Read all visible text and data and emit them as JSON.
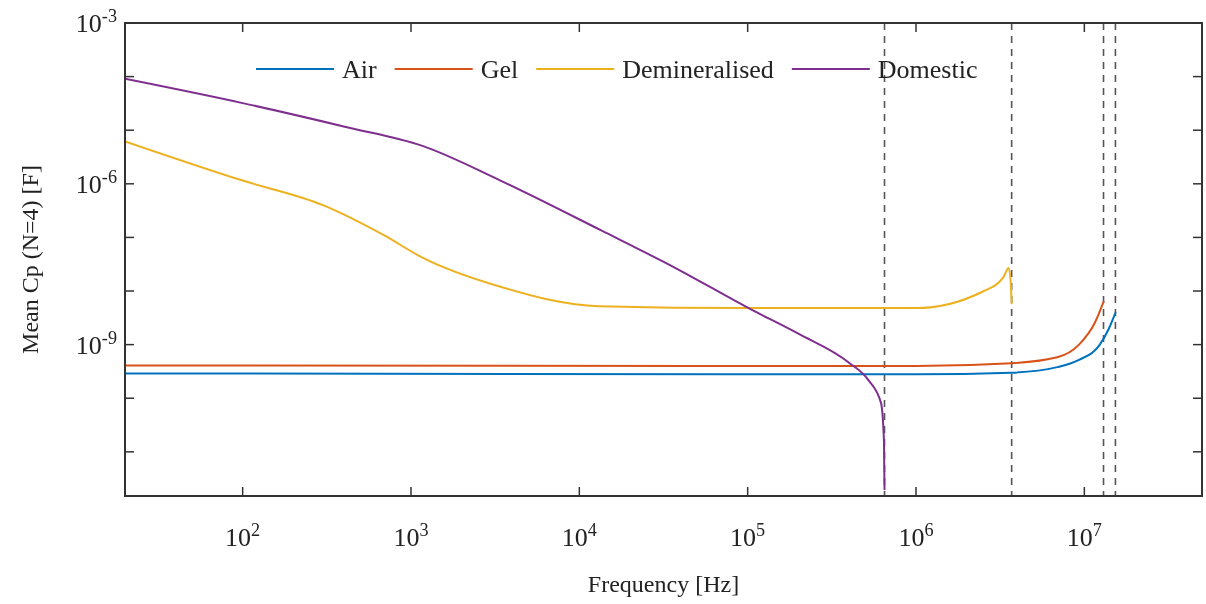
{
  "chart_data": {
    "type": "line",
    "xlabel": "Frequency [Hz]",
    "ylabel": "Mean Cp (N=4) [F]",
    "log": "xy",
    "grid": false,
    "legend": "top",
    "line_style": "solid",
    "marker": "none",
    "xlim": [
      20,
      50000000.0
    ],
    "xticks": [
      {
        "value": 100,
        "label": "10$^{2}$"
      },
      {
        "value": 1000,
        "label": "10$^{3}$"
      },
      {
        "value": 10000,
        "label": "10$^{4}$"
      },
      {
        "value": 100000,
        "label": "10$^{5}$"
      },
      {
        "value": 1000000,
        "label": "10$^{6}$"
      },
      {
        "value": 10000000,
        "label": "10$^{7}$"
      }
    ],
    "ylim": [
      1.5e-12,
      0.001
    ],
    "yticks": [
      {
        "value": 0.001,
        "label": "10$^{-3}$"
      },
      {
        "value": 0.0001,
        "label": null
      },
      {
        "value": 1e-05,
        "label": null
      },
      {
        "value": 1e-06,
        "label": "10$^{-6}$"
      },
      {
        "value": 1e-07,
        "label": null
      },
      {
        "value": 1e-08,
        "label": null
      },
      {
        "value": 1e-09,
        "label": "10$^{-9}$"
      },
      {
        "value": 1e-10,
        "label": null
      },
      {
        "value": 1e-11,
        "label": null
      }
    ],
    "series": [
      {
        "name": "Air",
        "color": "#0072bd",
        "x": [
          20,
          100000.0,
          1000000.0,
          3700000.0,
          6900000.0,
          9300000.0,
          12300000.0,
          14000000.0,
          15300000.0
        ],
        "values": [
          2.9e-10,
          2.8e-10,
          2.8e-10,
          3e-10,
          3.8e-10,
          5.2e-10,
          9.8e-10,
          2e-09,
          3.9e-09
        ]
      },
      {
        "name": "Gel",
        "color": "#d95319",
        "x": [
          20,
          100000.0,
          1000000.0,
          3700000.0,
          6900000.0,
          9300000.0,
          11500000.0,
          13000000.0
        ],
        "values": [
          4.1e-10,
          4e-10,
          4e-10,
          4.5e-10,
          5.8e-10,
          1e-09,
          2.5e-09,
          6.3e-09
        ]
      },
      {
        "name": "Demineralised",
        "color": "#edb120",
        "x": [
          20,
          100,
          300,
          690,
          1170,
          3400,
          13000,
          100000.0,
          1000000.0,
          2500000.0,
          3300000.0,
          3550000.0,
          3650000.0,
          3700000.0
        ],
        "values": [
          6.2e-06,
          1.15e-06,
          4e-07,
          1.1e-07,
          4.2e-08,
          1.2e-08,
          5.2e-09,
          4.8e-09,
          4.8e-09,
          9.8e-09,
          1.8e-08,
          2.7e-08,
          1.5e-08,
          5.9e-09
        ]
      },
      {
        "name": "Domestic",
        "color": "#7e2f8e",
        "x": [
          20,
          100,
          410,
          1170,
          3400,
          13500,
          38000,
          100000.0,
          200000.0,
          400000.0,
          520000.0,
          620000.0,
          645000.0,
          650000.0
        ],
        "values": [
          9.1e-05,
          3.2e-05,
          1.15e-05,
          5.1e-06,
          1.15e-06,
          1.35e-07,
          2.6e-08,
          4.9e-09,
          1.6e-09,
          4.6e-10,
          2.2e-10,
          8.1e-11,
          1.6e-11,
          2e-12
        ]
      }
    ],
    "ref_lines": [
      {
        "axis": "x",
        "value": 650000.0,
        "color": "#555555",
        "line_style": "dashed"
      },
      {
        "axis": "x",
        "value": 3700000.0,
        "color": "#555555",
        "line_style": "dashed"
      },
      {
        "axis": "x",
        "value": 13000000.0,
        "color": "#555555",
        "line_style": "dashed"
      },
      {
        "axis": "x",
        "value": 15300000.0,
        "color": "#555555",
        "line_style": "dashed"
      }
    ]
  }
}
